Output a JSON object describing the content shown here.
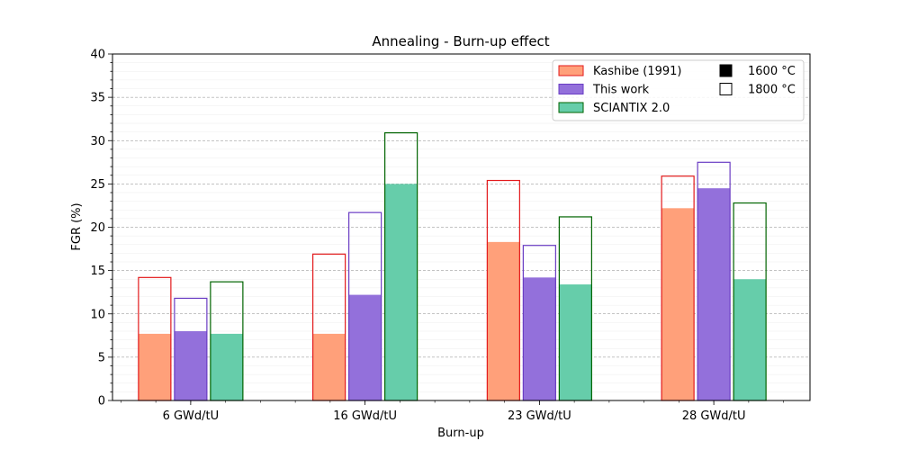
{
  "chart_data": {
    "type": "bar",
    "title": "Annealing - Burn-up effect",
    "xlabel": "Burn-up",
    "ylabel": "FGR (%)",
    "categories": [
      "6 GWd/tU",
      "16 GWd/tU",
      "23 GWd/tU",
      "28 GWd/tU"
    ],
    "ylim": [
      0,
      40
    ],
    "yticks": [
      0,
      5,
      10,
      15,
      20,
      25,
      30,
      35,
      40
    ],
    "grid": true,
    "legend_position": "top-right",
    "series": [
      {
        "name": "Kashibe (1991)",
        "fill_color": "#ffa07a",
        "edge_color": "#e31a1c",
        "values_1600": [
          7.7,
          7.7,
          18.3,
          22.2
        ],
        "values_1800": [
          14.2,
          16.9,
          25.4,
          25.9
        ]
      },
      {
        "name": "This work",
        "fill_color": "#9370db",
        "edge_color": "#6a3dc4",
        "values_1600": [
          8.0,
          12.2,
          14.2,
          24.5
        ],
        "values_1800": [
          11.8,
          21.7,
          17.9,
          27.5
        ]
      },
      {
        "name": "SCIANTIX 2.0",
        "fill_color": "#66cdaa",
        "edge_color": "#006400",
        "values_1600": [
          7.7,
          25.0,
          13.4,
          14.0
        ],
        "values_1800": [
          13.7,
          30.9,
          21.2,
          22.8
        ]
      }
    ],
    "temperature_legend": [
      {
        "label": "1600 °C",
        "style": "filled"
      },
      {
        "label": "1800 °C",
        "style": "hollow"
      }
    ]
  }
}
